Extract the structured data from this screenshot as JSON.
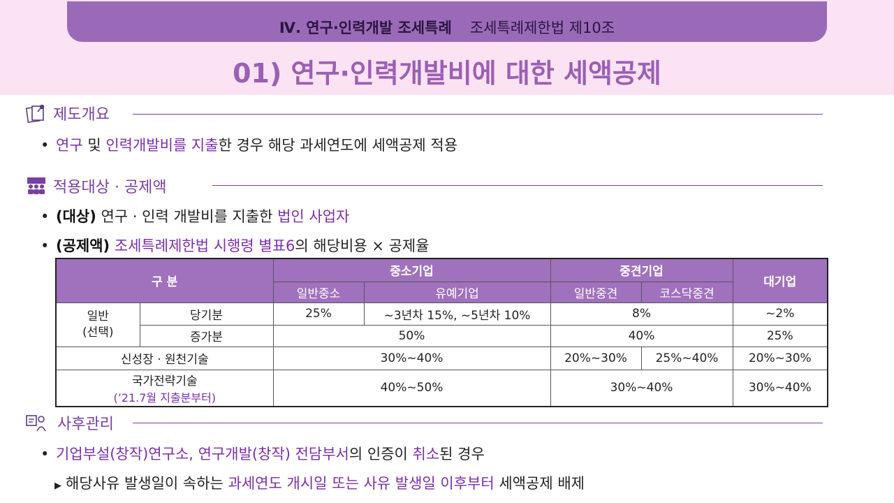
{
  "header": {
    "chapter": "Ⅳ. 연구·인력개발 조세특례",
    "law": "조세특례제한법 제10조",
    "title": "01) 연구·인력개발비에 대한 세액공제"
  },
  "overview": {
    "heading": "제도개요",
    "bullet": {
      "p1": "연구",
      "p2": " 및 ",
      "p3": "인력개발비를 지출",
      "p4": "한 경우 해당 과세연도에 세액공제 적용"
    }
  },
  "target": {
    "heading": "적용대상 · 공제액",
    "line1": {
      "tag": "(대상)",
      "text": " 연구 · 인력 개발비를 지출한 ",
      "hl": "법인 사업자"
    },
    "line2": {
      "tag": "(공제액)",
      "hl": " 조세특례제한법 시행령 별표6",
      "text": "의 해당비용 × 공제율"
    }
  },
  "table": {
    "header": {
      "category": "구 분",
      "sme": "중소기업",
      "mid": "중견기업",
      "large": "대기업",
      "sme_general": "일반중소",
      "sme_grace": "유예기업",
      "mid_general": "일반중견",
      "mid_kosdaq": "코스닥중견"
    },
    "general_label": "일반\n(선택)",
    "rows": {
      "current": {
        "label": "당기분",
        "sme_general": "25%",
        "sme_grace": "~3년차 15%, ~5년차 10%",
        "mid": "8%",
        "large": "~2%"
      },
      "increase": {
        "label": "증가분",
        "sme": "50%",
        "mid": "40%",
        "large": "25%"
      },
      "growth": {
        "label": "신성장 · 원천기술",
        "sme": "30%~40%",
        "mid_general": "20%~30%",
        "mid_kosdaq": "25%~40%",
        "large": "20%~30%"
      },
      "strategic": {
        "label": "국가전략기술",
        "sublabel": "(’21.7월 지출분부터)",
        "sme": "40%~50%",
        "mid": "30%~40%",
        "large": "30%~40%"
      }
    }
  },
  "aftercare": {
    "heading": "사후관리",
    "line1": {
      "hl1": "기업부설(창작)연구소, 연구개발(창작) 전담부서",
      "t1": "의 인증이 ",
      "hl2": "취소",
      "t2": "된 경우"
    },
    "line2": {
      "t1": "해당사유 발생일이 속하는 ",
      "hl": "과세연도 개시일 또는 사유 발생일 이후부터",
      "t2": " 세액공제 배제"
    }
  },
  "colors": {
    "accent": "#9a6ab8",
    "highlight": "#7a2ea8",
    "band": "#fbe3f3"
  },
  "icons": [
    "document-pin-icon",
    "meeting-people-icon",
    "person-presenting-icon"
  ]
}
